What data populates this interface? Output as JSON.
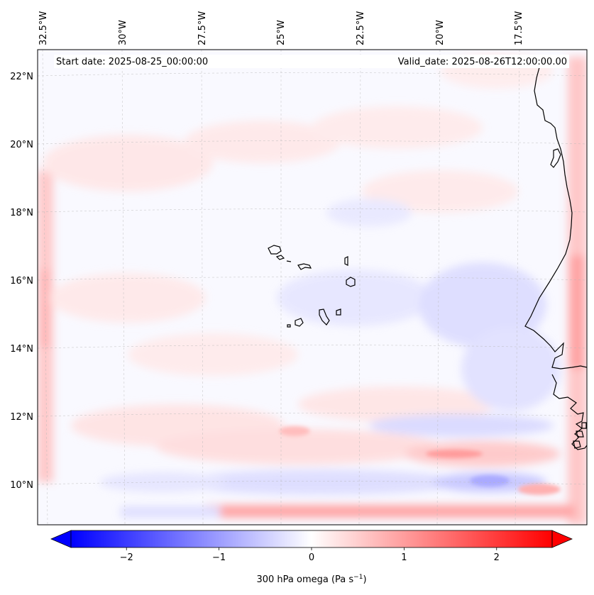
{
  "map": {
    "start_date_text": "Start date: 2025-08-25_00:00:00",
    "valid_date_text": "Valid_date: 2025-08-26T12:00:00.00",
    "longitude_labels": [
      "32.5°W",
      "30°W",
      "27.5°W",
      "25°W",
      "22.5°W",
      "20°W",
      "17.5°W"
    ],
    "latitude_labels": [
      "22°N",
      "20°N",
      "18°N",
      "16°N",
      "14°N",
      "12°N",
      "10°N"
    ],
    "field": "300 hPa omega",
    "gridlines": "dashed",
    "coastline_color": "#000000"
  },
  "colorbar": {
    "label_main": "300 hPa omega (Pa s",
    "label_sup": "−1",
    "label_close": ")",
    "ticks": [
      "−2",
      "−1",
      "0",
      "1",
      "2"
    ],
    "tick_values": [
      -2,
      -1,
      0,
      1,
      2
    ],
    "vmin": -2.6,
    "vmax": 2.6,
    "extend": "both",
    "cmap": "bwr",
    "colors": {
      "negative": "#0000ff",
      "zero": "#ffffff",
      "positive": "#ff0000"
    }
  }
}
